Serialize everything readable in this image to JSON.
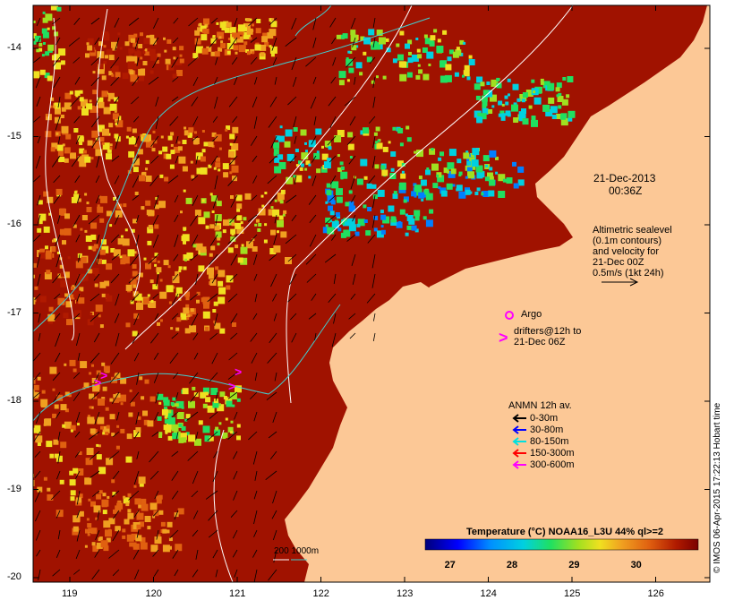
{
  "timestamp": {
    "date": "21-Dec-2013",
    "time": "00:36Z"
  },
  "altimetry_note": [
    "Altimetric sealevel",
    "(0.1m contours)",
    "and velocity for",
    "21-Dec 00Z",
    "0.5m/s (1kt 24h)"
  ],
  "argo_label": "Argo",
  "drifter_note": [
    "drifters@12h to",
    "21-Dec 06Z"
  ],
  "mooring_legend": {
    "title": "ANMN 12h av.",
    "items": [
      {
        "label": "0-30m",
        "color": "#000000"
      },
      {
        "label": "30-80m",
        "color": "#0000ff"
      },
      {
        "label": "80-150m",
        "color": "#00e0e0"
      },
      {
        "label": "150-300m",
        "color": "#ff0000"
      },
      {
        "label": "300-600m",
        "color": "#ff00ff"
      }
    ]
  },
  "bathymetry_label": "200  1000m",
  "colorbar": {
    "title": "Temperature (°C) NOAA16_L3U 44% ql>=2",
    "ticks": [
      "27",
      "28",
      "29",
      "30"
    ],
    "range": [
      26.6,
      31.0
    ]
  },
  "axes": {
    "lon_ticks": [
      "119",
      "120",
      "121",
      "122",
      "123",
      "124",
      "125",
      "126"
    ],
    "lat_ticks": [
      "-14",
      "-15",
      "-16",
      "-17",
      "-18",
      "-19",
      "-20"
    ]
  },
  "credit": "© IMOS 06-Apr-2015 17:22:13 Hobart time",
  "colors": {
    "land": "#fcc896",
    "sst_scale": [
      "#00007a",
      "#0000ff",
      "#0080ff",
      "#00d0e0",
      "#20e060",
      "#a0e020",
      "#f0e020",
      "#f0a020",
      "#e06010",
      "#b01a00",
      "#7a0000"
    ],
    "argo": "#ff00ff",
    "contour_white": "#ffffff",
    "contour_cyan": "#40d0d0"
  }
}
